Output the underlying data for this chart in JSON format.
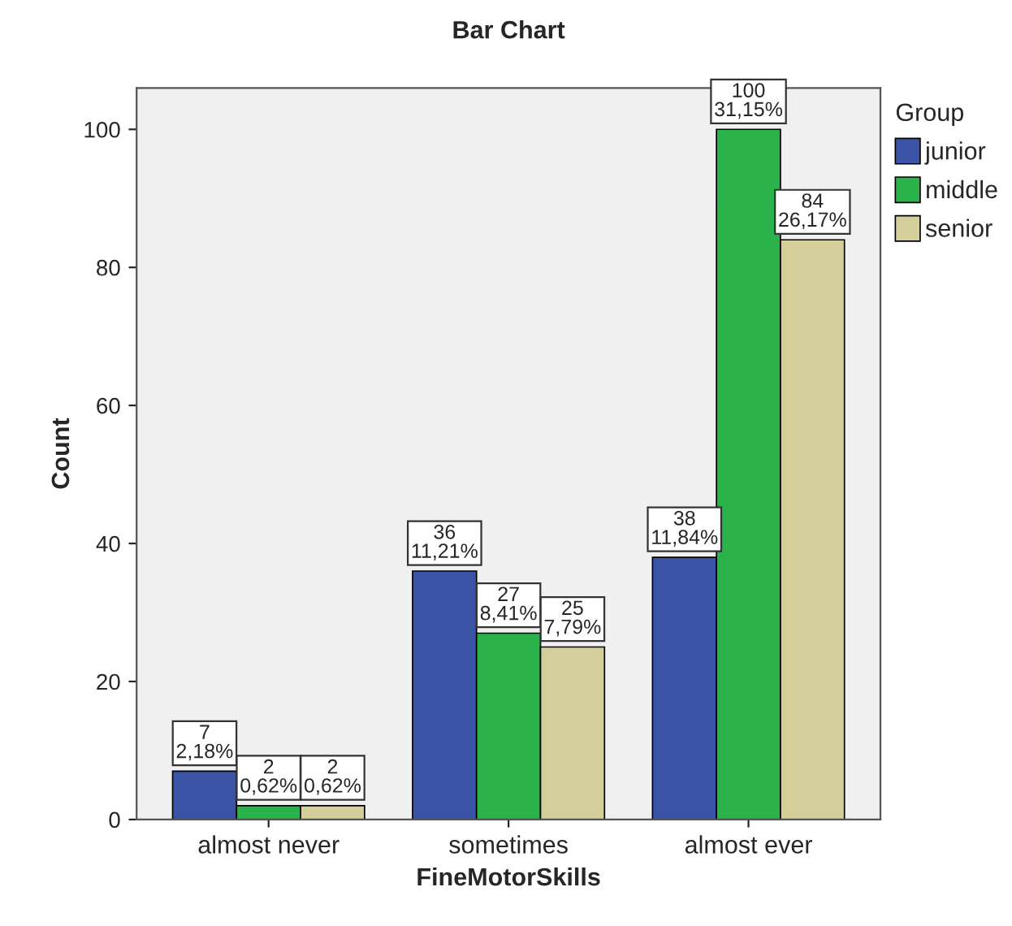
{
  "chart_data": {
    "type": "bar",
    "title": "Bar Chart",
    "xlabel": "FineMotorSkills",
    "ylabel": "Count",
    "legend_title": "Group",
    "categories": [
      "almost never",
      "sometimes",
      "almost ever"
    ],
    "series": [
      {
        "name": "junior",
        "color": "#3a53a4",
        "values": [
          7,
          36,
          38
        ],
        "value_labels": [
          "7\n2,18%",
          "36\n11,21%",
          "38\n11,84%"
        ]
      },
      {
        "name": "middle",
        "color": "#2ab34a",
        "values": [
          2,
          27,
          100
        ],
        "value_labels": [
          "2\n0,62%",
          "27\n8,41%",
          "100\n31,15%"
        ]
      },
      {
        "name": "senior",
        "color": "#d4ce9a",
        "values": [
          2,
          25,
          84
        ],
        "value_labels": [
          "2\n0,62%",
          "25\n7,79%",
          "84\n26,17%"
        ]
      }
    ],
    "ylim": [
      0,
      106
    ],
    "yticks": [
      0,
      20,
      40,
      60,
      80,
      100
    ],
    "grid": false,
    "legend": "top right"
  }
}
